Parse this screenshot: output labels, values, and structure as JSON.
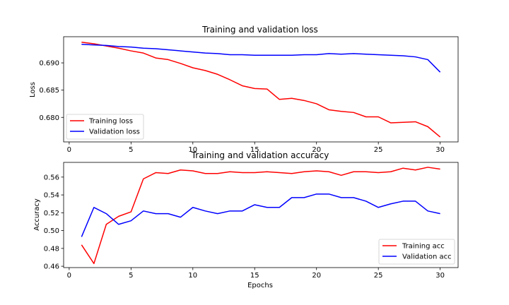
{
  "chart_data": [
    {
      "type": "line",
      "title": "Training and validation loss",
      "xlabel": "",
      "ylabel": "Loss",
      "xlim": [
        -0.45,
        31.45
      ],
      "ylim": [
        0.6755,
        0.6948
      ],
      "xticks": [
        0,
        5,
        10,
        15,
        20,
        25,
        30
      ],
      "yticks": [
        0.68,
        0.685,
        0.69
      ],
      "ytick_labels": [
        "0.680",
        "0.685",
        "0.690"
      ],
      "legend": "lower left",
      "grid": false,
      "x": [
        1,
        2,
        3,
        4,
        5,
        6,
        7,
        8,
        9,
        10,
        11,
        12,
        13,
        14,
        15,
        16,
        17,
        18,
        19,
        20,
        21,
        22,
        23,
        24,
        25,
        26,
        27,
        28,
        29,
        30
      ],
      "series": [
        {
          "name": "Training loss",
          "color": "#ff0000",
          "values": [
            0.6938,
            0.6935,
            0.6931,
            0.6927,
            0.6922,
            0.6918,
            0.6909,
            0.6906,
            0.6899,
            0.6891,
            0.6886,
            0.6879,
            0.6869,
            0.6858,
            0.6853,
            0.6852,
            0.6833,
            0.6835,
            0.6831,
            0.6825,
            0.6814,
            0.6811,
            0.6809,
            0.6801,
            0.6801,
            0.679,
            0.6791,
            0.6792,
            0.6783,
            0.6764
          ]
        },
        {
          "name": "Validation loss",
          "color": "#0000ff",
          "values": [
            0.6934,
            0.6933,
            0.6932,
            0.693,
            0.6929,
            0.6927,
            0.6926,
            0.6924,
            0.6922,
            0.692,
            0.6918,
            0.6917,
            0.6915,
            0.6915,
            0.6914,
            0.6914,
            0.6914,
            0.6914,
            0.6915,
            0.6915,
            0.6917,
            0.6916,
            0.6917,
            0.6916,
            0.6915,
            0.6914,
            0.6913,
            0.6911,
            0.6906,
            0.6883
          ]
        }
      ]
    },
    {
      "type": "line",
      "title": "Training and validation accuracy",
      "xlabel": "Epochs",
      "ylabel": "Accuracy",
      "xlim": [
        -0.45,
        31.45
      ],
      "ylim": [
        0.4585,
        0.5765
      ],
      "xticks": [
        0,
        5,
        10,
        15,
        20,
        25,
        30
      ],
      "yticks": [
        0.46,
        0.48,
        0.5,
        0.52,
        0.54,
        0.56
      ],
      "ytick_labels": [
        "0.46",
        "0.48",
        "0.50",
        "0.52",
        "0.54",
        "0.56"
      ],
      "legend": "lower right",
      "grid": false,
      "x": [
        1,
        2,
        3,
        4,
        5,
        6,
        7,
        8,
        9,
        10,
        11,
        12,
        13,
        14,
        15,
        16,
        17,
        18,
        19,
        20,
        21,
        22,
        23,
        24,
        25,
        26,
        27,
        28,
        29,
        30
      ],
      "series": [
        {
          "name": "Training acc",
          "color": "#ff0000",
          "values": [
            0.484,
            0.463,
            0.507,
            0.516,
            0.521,
            0.558,
            0.565,
            0.564,
            0.568,
            0.567,
            0.564,
            0.564,
            0.566,
            0.565,
            0.565,
            0.566,
            0.565,
            0.564,
            0.566,
            0.567,
            0.566,
            0.562,
            0.566,
            0.566,
            0.565,
            0.566,
            0.57,
            0.568,
            0.571,
            0.569
          ]
        },
        {
          "name": "Validation acc",
          "color": "#0000ff",
          "values": [
            0.493,
            0.526,
            0.519,
            0.507,
            0.511,
            0.522,
            0.519,
            0.519,
            0.515,
            0.526,
            0.522,
            0.519,
            0.522,
            0.522,
            0.529,
            0.526,
            0.526,
            0.537,
            0.537,
            0.541,
            0.541,
            0.537,
            0.537,
            0.533,
            0.526,
            0.53,
            0.533,
            0.533,
            0.522,
            0.519
          ]
        }
      ]
    }
  ]
}
